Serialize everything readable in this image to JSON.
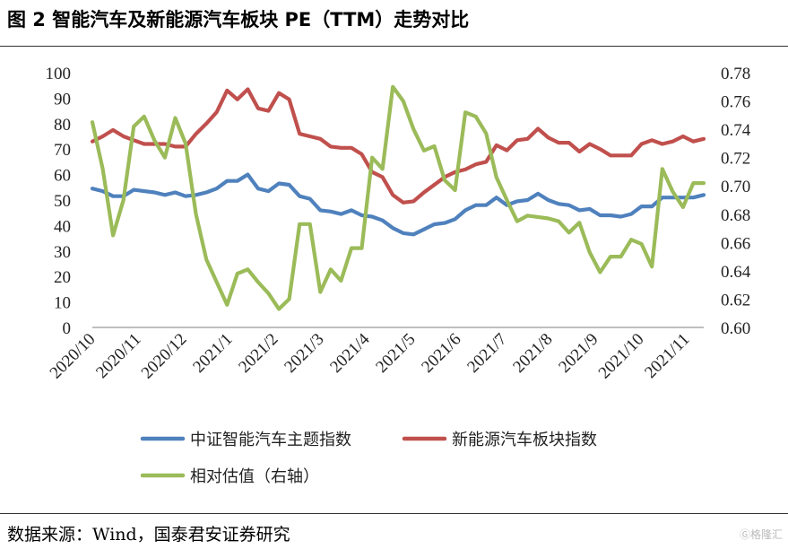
{
  "header": {
    "title": "图  2 智能汽车及新能源汽车板块 PE（TTM）走势对比"
  },
  "footer": {
    "source": "数据来源：Wind，国泰君安证券研究",
    "watermark": "格隆汇"
  },
  "chart_data": {
    "type": "line",
    "title": "智能汽车及新能源汽车板块 PE（TTM）走势对比",
    "xlabel": "",
    "ylabel": "",
    "ylim": [
      0,
      100
    ],
    "y2lim": [
      0.6,
      0.78
    ],
    "grid": false,
    "legend_position": "bottom",
    "y_ticks": [
      "0",
      "10",
      "20",
      "30",
      "40",
      "50",
      "60",
      "70",
      "80",
      "90",
      "100"
    ],
    "y2_ticks": [
      "0.60",
      "0.62",
      "0.64",
      "0.66",
      "0.68",
      "0.70",
      "0.72",
      "0.74",
      "0.76",
      "0.78"
    ],
    "x_tick_labels": [
      "2020/10",
      "2020/11",
      "2020/12",
      "2021/1",
      "2021/2",
      "2021/3",
      "2021/4",
      "2021/5",
      "2021/6",
      "2021/7",
      "2021/8",
      "2021/9",
      "2021/10",
      "2021/11"
    ],
    "series": [
      {
        "name": "中证智能汽车主题指数",
        "axis": "left",
        "color": "#4f81bd",
        "values": [
          54.5,
          53.5,
          51.5,
          51.5,
          54,
          53.5,
          53,
          52,
          53,
          51.5,
          52,
          53,
          54.5,
          57.5,
          57.5,
          60,
          54.5,
          53.5,
          56.5,
          56,
          51.5,
          50.5,
          46,
          45.5,
          44.5,
          46,
          44,
          43.5,
          42,
          39,
          37,
          36.5,
          38.5,
          40.5,
          41,
          42.5,
          46,
          48,
          48,
          51,
          48,
          49.5,
          50,
          52.5,
          50,
          48.5,
          48,
          46,
          46.5,
          44,
          44,
          43.5,
          44.5,
          47.5,
          47.5,
          51,
          51,
          51,
          51,
          52
        ]
      },
      {
        "name": "新能源汽车板块指数",
        "axis": "left",
        "color": "#c0504d",
        "values": [
          73,
          75,
          77.5,
          75,
          73.5,
          72,
          72,
          72,
          71,
          71,
          76,
          80,
          84.5,
          93,
          89.5,
          93.5,
          86,
          85,
          92,
          89.5,
          76,
          75,
          74,
          71,
          70.5,
          70.5,
          68,
          61,
          59,
          52,
          49,
          49.5,
          53,
          56,
          59,
          61,
          62,
          64,
          65,
          71.5,
          69.5,
          73.5,
          74,
          78,
          74.5,
          72.5,
          72.5,
          69,
          72,
          70,
          67.5,
          67.5,
          67.5,
          72,
          73.5,
          72,
          73,
          75,
          73,
          74
        ]
      },
      {
        "name": "相对估值（右轴）",
        "axis": "right",
        "color": "#9bbb59",
        "values": [
          0.745,
          0.712,
          0.665,
          0.69,
          0.742,
          0.749,
          0.732,
          0.72,
          0.748,
          0.73,
          0.68,
          0.648,
          0.632,
          0.616,
          0.638,
          0.641,
          0.632,
          0.624,
          0.613,
          0.62,
          0.673,
          0.673,
          0.625,
          0.641,
          0.633,
          0.656,
          0.656,
          0.72,
          0.712,
          0.77,
          0.76,
          0.74,
          0.725,
          0.728,
          0.704,
          0.697,
          0.752,
          0.749,
          0.737,
          0.706,
          0.69,
          0.675,
          0.679,
          0.678,
          0.677,
          0.675,
          0.667,
          0.674,
          0.653,
          0.639,
          0.65,
          0.65,
          0.662,
          0.659,
          0.643,
          0.712,
          0.696,
          0.685,
          0.702,
          0.702
        ]
      }
    ]
  }
}
